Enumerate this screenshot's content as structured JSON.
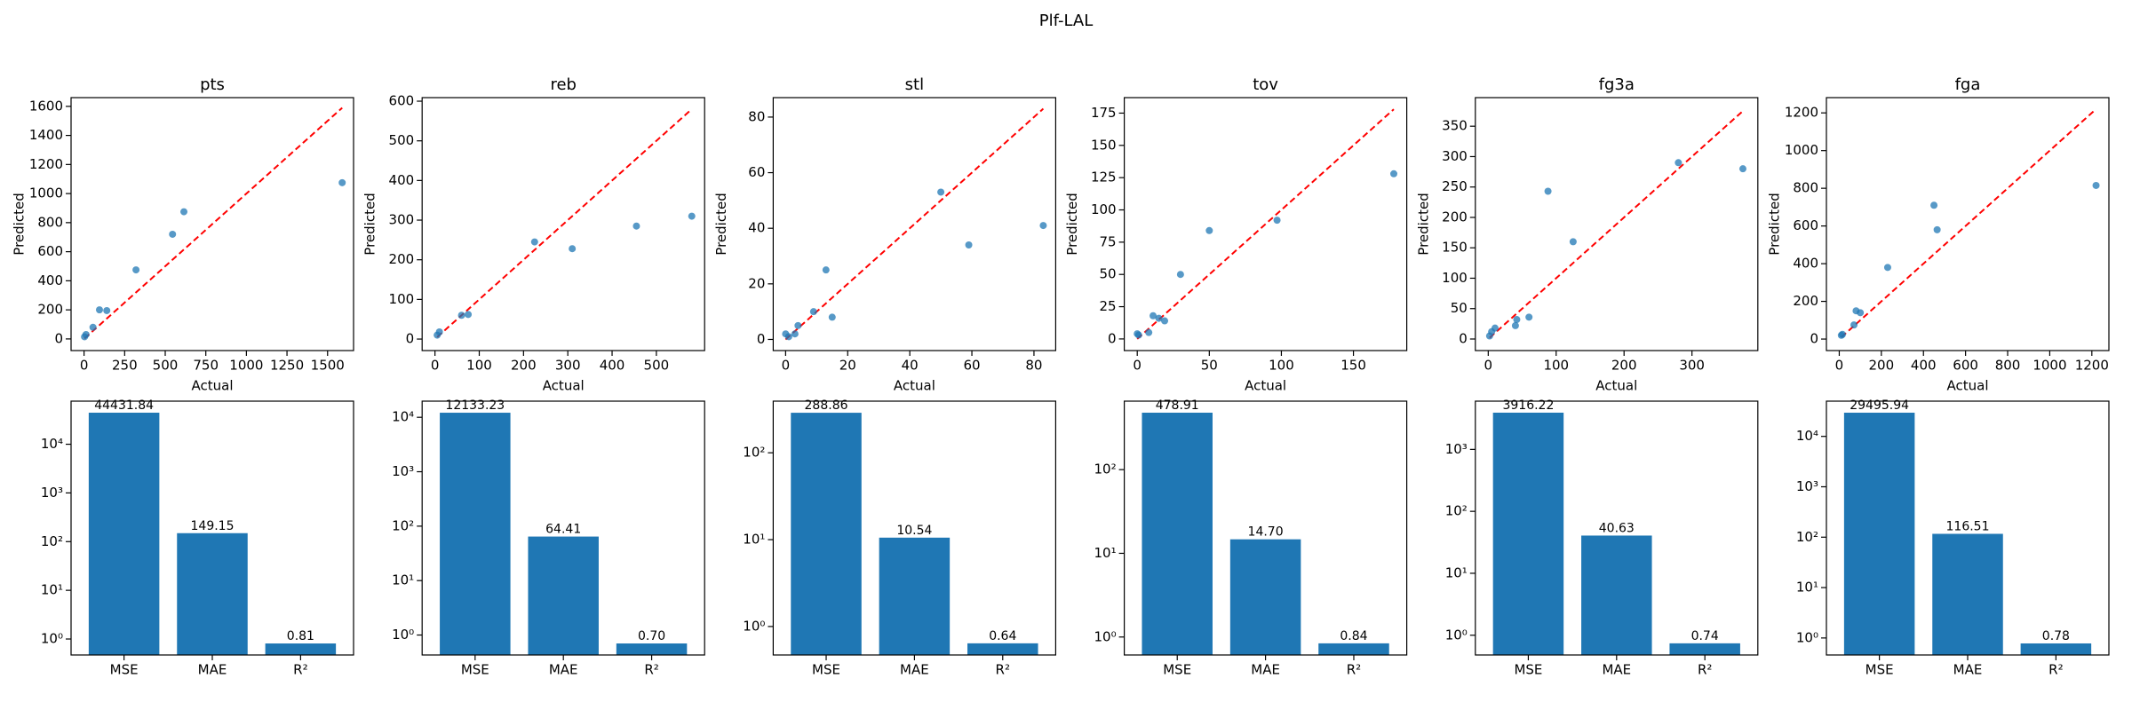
{
  "title": "Plf-LAL",
  "chart_data": [
    {
      "type": "scatter",
      "title": "pts",
      "x_label": "Actual",
      "y_label": "Predicted",
      "color": "#1f77b4",
      "reference_line_color": "#ff0000",
      "x": [
        3,
        12,
        55,
        95,
        140,
        320,
        545,
        615,
        1590
      ],
      "y": [
        15,
        30,
        80,
        200,
        195,
        475,
        720,
        875,
        1075
      ],
      "xlim": [
        -80,
        1660
      ],
      "ylim": [
        -80,
        1660
      ],
      "xticks": [
        0,
        250,
        500,
        750,
        1000,
        1250,
        1500
      ],
      "yticks": [
        0,
        200,
        400,
        600,
        800,
        1000,
        1200,
        1400,
        1600
      ]
    },
    {
      "type": "scatter",
      "title": "reb",
      "x_label": "Actual",
      "y_label": "Predicted",
      "color": "#1f77b4",
      "reference_line_color": "#ff0000",
      "x": [
        5,
        10,
        60,
        75,
        225,
        310,
        455,
        580
      ],
      "y": [
        10,
        18,
        60,
        62,
        245,
        228,
        285,
        310
      ],
      "xlim": [
        -29,
        609
      ],
      "ylim": [
        -29,
        609
      ],
      "xticks": [
        0,
        100,
        200,
        300,
        400,
        500
      ],
      "yticks": [
        0,
        100,
        200,
        300,
        400,
        500,
        600
      ]
    },
    {
      "type": "scatter",
      "title": "stl",
      "x_label": "Actual",
      "y_label": "Predicted",
      "color": "#1f77b4",
      "reference_line_color": "#ff0000",
      "x": [
        0,
        1,
        3,
        4,
        9,
        13,
        15,
        50,
        59,
        83
      ],
      "y": [
        2,
        1,
        2,
        5,
        10,
        25,
        8,
        53,
        34,
        41
      ],
      "xlim": [
        -4,
        87
      ],
      "ylim": [
        -4,
        87
      ],
      "xticks": [
        0,
        20,
        40,
        60,
        80
      ],
      "yticks": [
        0,
        20,
        40,
        60,
        80
      ]
    },
    {
      "type": "scatter",
      "title": "tov",
      "x_label": "Actual",
      "y_label": "Predicted",
      "color": "#1f77b4",
      "reference_line_color": "#ff0000",
      "x": [
        0,
        1,
        8,
        11,
        15,
        19,
        30,
        50,
        97,
        178
      ],
      "y": [
        4,
        3,
        5,
        18,
        16,
        14,
        50,
        84,
        92,
        128
      ],
      "xlim": [
        -9,
        187
      ],
      "ylim": [
        -9,
        187
      ],
      "xticks": [
        0,
        50,
        100,
        150
      ],
      "yticks": [
        0,
        25,
        50,
        75,
        100,
        125,
        150,
        175
      ]
    },
    {
      "type": "scatter",
      "title": "fg3a",
      "x_label": "Actual",
      "y_label": "Predicted",
      "color": "#1f77b4",
      "reference_line_color": "#ff0000",
      "x": [
        2,
        5,
        10,
        40,
        42,
        60,
        88,
        125,
        280,
        375
      ],
      "y": [
        5,
        12,
        18,
        22,
        32,
        36,
        243,
        160,
        290,
        280
      ],
      "xlim": [
        -19,
        397
      ],
      "ylim": [
        -19,
        397
      ],
      "xticks": [
        0,
        100,
        200,
        300
      ],
      "yticks": [
        0,
        50,
        100,
        150,
        200,
        250,
        300,
        350
      ]
    },
    {
      "type": "scatter",
      "title": "fga",
      "x_label": "Actual",
      "y_label": "Predicted",
      "color": "#1f77b4",
      "reference_line_color": "#ff0000",
      "x": [
        10,
        15,
        70,
        80,
        100,
        230,
        450,
        465,
        1220
      ],
      "y": [
        20,
        25,
        75,
        150,
        140,
        380,
        710,
        580,
        815
      ],
      "xlim": [
        -61,
        1281
      ],
      "ylim": [
        -61,
        1281
      ],
      "xticks": [
        0,
        200,
        400,
        600,
        800,
        1000,
        1200
      ],
      "yticks": [
        0,
        200,
        400,
        600,
        800,
        1000,
        1200
      ]
    },
    {
      "type": "bar",
      "log_y": true,
      "color": "#1f77b4",
      "categories": [
        "MSE",
        "MAE",
        "R²"
      ],
      "values": [
        44431.84,
        149.15,
        0.81
      ],
      "value_labels": [
        "44431.84",
        "149.15",
        "0.81"
      ],
      "ylim": [
        0.47,
        76700
      ],
      "yticks": [
        {
          "value": 1,
          "label": "10⁰"
        },
        {
          "value": 10,
          "label": "10¹"
        },
        {
          "value": 100,
          "label": "10²"
        },
        {
          "value": 1000,
          "label": "10³"
        },
        {
          "value": 10000,
          "label": "10⁴"
        }
      ]
    },
    {
      "type": "bar",
      "log_y": true,
      "color": "#1f77b4",
      "categories": [
        "MSE",
        "MAE",
        "R²"
      ],
      "values": [
        12133.23,
        64.41,
        0.7
      ],
      "value_labels": [
        "12133.23",
        "64.41",
        "0.70"
      ],
      "ylim": [
        0.43,
        19800
      ],
      "yticks": [
        {
          "value": 1,
          "label": "10⁰"
        },
        {
          "value": 10,
          "label": "10¹"
        },
        {
          "value": 100,
          "label": "10²"
        },
        {
          "value": 1000,
          "label": "10³"
        },
        {
          "value": 10000,
          "label": "10⁴"
        }
      ]
    },
    {
      "type": "bar",
      "log_y": true,
      "color": "#1f77b4",
      "categories": [
        "MSE",
        "MAE",
        "R²"
      ],
      "values": [
        288.86,
        10.54,
        0.64
      ],
      "value_labels": [
        "288.86",
        "10.54",
        "0.64"
      ],
      "ylim": [
        0.47,
        393
      ],
      "yticks": [
        {
          "value": 1,
          "label": "10⁰"
        },
        {
          "value": 10,
          "label": "10¹"
        },
        {
          "value": 100,
          "label": "10²"
        }
      ]
    },
    {
      "type": "bar",
      "log_y": true,
      "color": "#1f77b4",
      "categories": [
        "MSE",
        "MAE",
        "R²"
      ],
      "values": [
        478.91,
        14.7,
        0.84
      ],
      "value_labels": [
        "478.91",
        "14.70",
        "0.84"
      ],
      "ylim": [
        0.61,
        658
      ],
      "yticks": [
        {
          "value": 1,
          "label": "10⁰"
        },
        {
          "value": 10,
          "label": "10¹"
        },
        {
          "value": 100,
          "label": "10²"
        }
      ]
    },
    {
      "type": "bar",
      "log_y": true,
      "color": "#1f77b4",
      "categories": [
        "MSE",
        "MAE",
        "R²"
      ],
      "values": [
        3916.22,
        40.63,
        0.74
      ],
      "value_labels": [
        "3916.22",
        "40.63",
        "0.74"
      ],
      "ylim": [
        0.48,
        6010
      ],
      "yticks": [
        {
          "value": 1,
          "label": "10⁰"
        },
        {
          "value": 10,
          "label": "10¹"
        },
        {
          "value": 100,
          "label": "10²"
        },
        {
          "value": 1000,
          "label": "10³"
        }
      ]
    },
    {
      "type": "bar",
      "log_y": true,
      "color": "#1f77b4",
      "categories": [
        "MSE",
        "MAE",
        "R²"
      ],
      "values": [
        29495.94,
        116.51,
        0.78
      ],
      "value_labels": [
        "29495.94",
        "116.51",
        "0.78"
      ],
      "ylim": [
        0.46,
        50000
      ],
      "yticks": [
        {
          "value": 1,
          "label": "10⁰"
        },
        {
          "value": 10,
          "label": "10¹"
        },
        {
          "value": 100,
          "label": "10²"
        },
        {
          "value": 1000,
          "label": "10³"
        },
        {
          "value": 10000,
          "label": "10⁴"
        }
      ]
    }
  ]
}
